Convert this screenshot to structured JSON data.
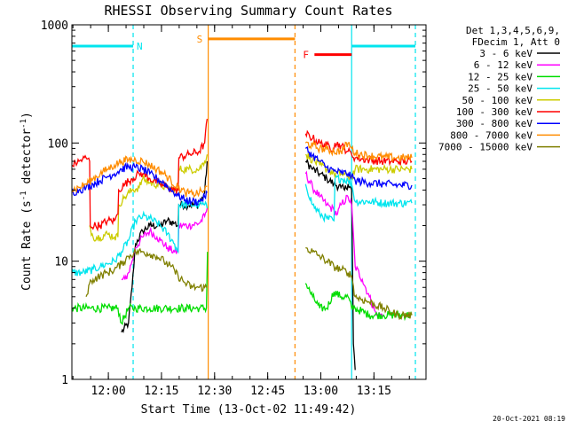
{
  "chart_data": {
    "type": "line",
    "title": "RHESSI Observing Summary Count Rates",
    "xlabel": "Start Time (13-Oct-02 11:49:42)",
    "ylabel": "Count Rate (s⁻¹ detector⁻¹)",
    "ylabel_parts": {
      "base": "Count Rate (s",
      "sup1": "-1",
      "mid": " detector",
      "sup2": "-1",
      "end": ")"
    },
    "yscale": "log",
    "ylim": [
      1,
      1000
    ],
    "xlim_minutes_from_start": [
      0,
      100
    ],
    "x_ticks": [
      "12:00",
      "12:15",
      "12:30",
      "12:45",
      "13:00",
      "13:15"
    ],
    "x_tick_minutes": [
      10.3,
      25.3,
      40.3,
      55.3,
      70.3,
      85.3
    ],
    "y_ticks": [
      "1",
      "10",
      "100",
      "1000"
    ],
    "y_tick_values": [
      1,
      10,
      100,
      1000
    ],
    "legend_header": [
      "Det 1,3,4,5,6,9,",
      "FDecim 1, Att 0"
    ],
    "legend_placement": "right",
    "footer": "20-Oct-2021 08:19",
    "flags": [
      {
        "label": "N",
        "color": "#00e5ee",
        "y": 660,
        "segments": [
          [
            0,
            17.3
          ],
          [
            79,
            97
          ]
        ]
      },
      {
        "label": "S",
        "color": "#ff8c00",
        "y": 760,
        "segments": [
          [
            38.5,
            63
          ]
        ]
      },
      {
        "label": "F",
        "color": "#ff0000",
        "y": 560,
        "segments": [
          [
            68.5,
            79
          ]
        ]
      }
    ],
    "vlines": [
      {
        "x": 17.3,
        "color": "#00e5ee",
        "style": "dashed"
      },
      {
        "x": 38.5,
        "color": "#ff8c00",
        "style": "solid"
      },
      {
        "x": 63,
        "color": "#ff8c00",
        "style": "dashed"
      },
      {
        "x": 79,
        "color": "#00e5ee",
        "style": "solid"
      },
      {
        "x": 97,
        "color": "#00e5ee",
        "style": "dashed"
      }
    ],
    "gaps": [
      [
        38.5,
        66
      ]
    ],
    "series": [
      {
        "name": "3 - 6 keV",
        "color": "#000000",
        "points": [
          [
            14,
            2.5
          ],
          [
            16,
            3
          ],
          [
            17,
            6
          ],
          [
            18,
            14
          ],
          [
            20,
            18
          ],
          [
            22,
            20
          ],
          [
            25,
            20
          ],
          [
            27,
            22
          ],
          [
            29,
            21
          ],
          [
            30,
            20
          ],
          [
            30.2,
            30
          ],
          [
            33,
            30
          ],
          [
            36,
            30
          ],
          [
            37.5,
            38
          ],
          [
            38.2,
            70
          ],
          [
            66,
            70
          ],
          [
            68,
            60
          ],
          [
            70,
            55
          ],
          [
            72,
            50
          ],
          [
            74,
            45
          ],
          [
            76,
            42
          ],
          [
            77,
            40
          ],
          [
            78,
            45
          ],
          [
            79,
            40
          ],
          [
            79.5,
            2
          ],
          [
            80,
            1.2
          ]
        ]
      },
      {
        "name": "6 - 12 keV",
        "color": "#ff00ff",
        "points": [
          [
            14,
            7
          ],
          [
            15,
            7
          ],
          [
            16,
            8
          ],
          [
            17,
            10
          ],
          [
            18,
            13
          ],
          [
            20,
            16
          ],
          [
            22,
            18
          ],
          [
            24,
            16
          ],
          [
            25,
            15
          ],
          [
            27,
            13
          ],
          [
            29,
            12
          ],
          [
            30,
            12
          ],
          [
            30.2,
            20
          ],
          [
            33,
            20
          ],
          [
            36,
            21
          ],
          [
            37.5,
            24
          ],
          [
            38.2,
            28
          ],
          [
            66,
            55
          ],
          [
            68,
            42
          ],
          [
            70,
            35
          ],
          [
            72,
            30
          ],
          [
            74,
            27
          ],
          [
            75,
            25
          ],
          [
            76,
            30
          ],
          [
            78,
            35
          ],
          [
            79,
            30
          ],
          [
            80,
            9
          ],
          [
            82,
            7
          ],
          [
            84,
            5
          ],
          [
            86,
            3.5
          ],
          [
            88,
            3.5
          ]
        ]
      },
      {
        "name": "12 - 25 keV",
        "color": "#00dd00",
        "points": [
          [
            0,
            4
          ],
          [
            5,
            4
          ],
          [
            10,
            4
          ],
          [
            13,
            4
          ],
          [
            14,
            3
          ],
          [
            16,
            4
          ],
          [
            18,
            4
          ],
          [
            22,
            4
          ],
          [
            26,
            4
          ],
          [
            29,
            4
          ],
          [
            32,
            4
          ],
          [
            36,
            4
          ],
          [
            38,
            4
          ],
          [
            38.3,
            12
          ],
          [
            66,
            6.5
          ],
          [
            68,
            5
          ],
          [
            70,
            4
          ],
          [
            72,
            4
          ],
          [
            74,
            5.5
          ],
          [
            76,
            5
          ],
          [
            78,
            5
          ],
          [
            79,
            4
          ],
          [
            80,
            4
          ],
          [
            84,
            3.5
          ],
          [
            88,
            3.5
          ],
          [
            93,
            3.5
          ],
          [
            96,
            3.5
          ]
        ]
      },
      {
        "name": "25 - 50 keV",
        "color": "#00e5ee",
        "points": [
          [
            0,
            8
          ],
          [
            3,
            8
          ],
          [
            6,
            8.5
          ],
          [
            8,
            9
          ],
          [
            10,
            9.5
          ],
          [
            12,
            10
          ],
          [
            14,
            12
          ],
          [
            16,
            15
          ],
          [
            18,
            22
          ],
          [
            20,
            24
          ],
          [
            22,
            23
          ],
          [
            25,
            20
          ],
          [
            27,
            17
          ],
          [
            29,
            14
          ],
          [
            30,
            12
          ],
          [
            30.2,
            30
          ],
          [
            33,
            30
          ],
          [
            36,
            30
          ],
          [
            37.5,
            30
          ],
          [
            38.2,
            28
          ],
          [
            66,
            45
          ],
          [
            68,
            30
          ],
          [
            70,
            25
          ],
          [
            72,
            23
          ],
          [
            74,
            22
          ],
          [
            74.3,
            50
          ],
          [
            76,
            50
          ],
          [
            78,
            48
          ],
          [
            79,
            45
          ],
          [
            80,
            32
          ],
          [
            84,
            32
          ],
          [
            88,
            31
          ],
          [
            92,
            31
          ],
          [
            96,
            31
          ]
        ]
      },
      {
        "name": "50 - 100 keV",
        "color": "#cccc00",
        "points": [
          [
            5,
            20
          ],
          [
            6,
            16
          ],
          [
            8,
            16
          ],
          [
            10,
            17
          ],
          [
            12,
            16
          ],
          [
            13,
            16
          ],
          [
            13.2,
            30
          ],
          [
            15,
            35
          ],
          [
            17,
            40
          ],
          [
            19,
            42
          ],
          [
            20,
            50
          ],
          [
            22,
            46
          ],
          [
            25,
            44
          ],
          [
            27,
            42
          ],
          [
            29,
            40
          ],
          [
            30,
            40
          ],
          [
            30.2,
            60
          ],
          [
            33,
            60
          ],
          [
            36,
            60
          ],
          [
            37.5,
            70
          ],
          [
            38.2,
            80
          ],
          [
            66,
            80
          ],
          [
            68,
            72
          ],
          [
            70,
            65
          ],
          [
            72,
            60
          ],
          [
            74,
            55
          ],
          [
            76,
            55
          ],
          [
            78,
            52
          ],
          [
            79,
            52
          ],
          [
            80,
            60
          ],
          [
            84,
            60
          ],
          [
            88,
            60
          ],
          [
            92,
            60
          ],
          [
            96,
            60
          ]
        ]
      },
      {
        "name": "100 - 300 keV",
        "color": "#ff0000",
        "points": [
          [
            0,
            65
          ],
          [
            2,
            70
          ],
          [
            4,
            75
          ],
          [
            5,
            70
          ],
          [
            5.2,
            20
          ],
          [
            8,
            20
          ],
          [
            10,
            22
          ],
          [
            12,
            22
          ],
          [
            13,
            25
          ],
          [
            13.2,
            40
          ],
          [
            15,
            45
          ],
          [
            17,
            50
          ],
          [
            19,
            55
          ],
          [
            20,
            55
          ],
          [
            22,
            50
          ],
          [
            25,
            45
          ],
          [
            27,
            42
          ],
          [
            29,
            40
          ],
          [
            30,
            40
          ],
          [
            30.2,
            75
          ],
          [
            33,
            80
          ],
          [
            36,
            85
          ],
          [
            37.5,
            100
          ],
          [
            38.2,
            160
          ],
          [
            66,
            120
          ],
          [
            68,
            110
          ],
          [
            70,
            100
          ],
          [
            72,
            95
          ],
          [
            74,
            90
          ],
          [
            74.3,
            100
          ],
          [
            76,
            95
          ],
          [
            78,
            85
          ],
          [
            79,
            80
          ],
          [
            80,
            75
          ],
          [
            84,
            72
          ],
          [
            88,
            70
          ],
          [
            92,
            70
          ],
          [
            96,
            70
          ]
        ]
      },
      {
        "name": "300 - 800 keV",
        "color": "#0000ff",
        "points": [
          [
            0,
            38
          ],
          [
            2,
            40
          ],
          [
            4,
            42
          ],
          [
            6,
            45
          ],
          [
            8,
            48
          ],
          [
            10,
            52
          ],
          [
            12,
            55
          ],
          [
            14,
            60
          ],
          [
            16,
            63
          ],
          [
            18,
            62
          ],
          [
            20,
            60
          ],
          [
            22,
            55
          ],
          [
            24,
            50
          ],
          [
            26,
            46
          ],
          [
            28,
            40
          ],
          [
            30,
            36
          ],
          [
            32,
            33
          ],
          [
            34,
            32
          ],
          [
            36,
            32
          ],
          [
            37.5,
            35
          ],
          [
            38.2,
            38
          ],
          [
            66,
            90
          ],
          [
            68,
            78
          ],
          [
            70,
            70
          ],
          [
            72,
            62
          ],
          [
            74,
            58
          ],
          [
            76,
            56
          ],
          [
            78,
            55
          ],
          [
            79,
            52
          ],
          [
            80,
            48
          ],
          [
            84,
            46
          ],
          [
            88,
            45
          ],
          [
            92,
            44
          ],
          [
            96,
            44
          ]
        ]
      },
      {
        "name": "800 - 7000 keV",
        "color": "#ff8c00",
        "points": [
          [
            0,
            40
          ],
          [
            2,
            42
          ],
          [
            4,
            45
          ],
          [
            6,
            50
          ],
          [
            8,
            55
          ],
          [
            10,
            60
          ],
          [
            12,
            65
          ],
          [
            14,
            70
          ],
          [
            16,
            72
          ],
          [
            18,
            72
          ],
          [
            20,
            70
          ],
          [
            22,
            65
          ],
          [
            24,
            60
          ],
          [
            26,
            55
          ],
          [
            28,
            48
          ],
          [
            30,
            42
          ],
          [
            32,
            38
          ],
          [
            34,
            37
          ],
          [
            36,
            38
          ],
          [
            37.5,
            40
          ],
          [
            38.2,
            43
          ],
          [
            66,
            100
          ],
          [
            68,
            95
          ],
          [
            70,
            90
          ],
          [
            72,
            88
          ],
          [
            74,
            85
          ],
          [
            76,
            85
          ],
          [
            78,
            100
          ],
          [
            79,
            90
          ],
          [
            80,
            82
          ],
          [
            84,
            78
          ],
          [
            88,
            76
          ],
          [
            92,
            75
          ],
          [
            96,
            75
          ]
        ]
      },
      {
        "name": "7000 - 15000 keV",
        "color": "#808000",
        "points": [
          [
            4,
            5
          ],
          [
            5,
            6.5
          ],
          [
            6,
            7
          ],
          [
            8,
            7.5
          ],
          [
            10,
            8
          ],
          [
            12,
            8.5
          ],
          [
            14,
            9.5
          ],
          [
            16,
            11
          ],
          [
            18,
            12
          ],
          [
            20,
            12
          ],
          [
            22,
            11.5
          ],
          [
            24,
            11
          ],
          [
            26,
            10
          ],
          [
            28,
            9
          ],
          [
            30,
            7.5
          ],
          [
            32,
            6.5
          ],
          [
            34,
            6
          ],
          [
            36,
            6
          ],
          [
            37.5,
            6
          ],
          [
            38.2,
            6
          ],
          [
            66,
            13
          ],
          [
            68,
            12
          ],
          [
            70,
            11
          ],
          [
            72,
            10
          ],
          [
            74,
            9
          ],
          [
            76,
            8.5
          ],
          [
            78,
            8
          ],
          [
            79,
            7.5
          ],
          [
            80,
            5
          ],
          [
            84,
            4.5
          ],
          [
            88,
            4
          ],
          [
            92,
            3.5
          ],
          [
            96,
            3.5
          ]
        ]
      }
    ]
  }
}
